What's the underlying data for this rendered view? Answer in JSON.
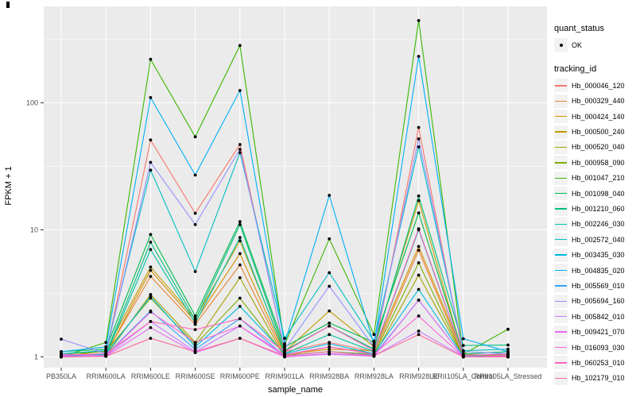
{
  "figure": {
    "background": "#FFFFFF",
    "panel_background": "#EBEBEB",
    "gridline_color": "#FFFFFF",
    "tick_mark_color": "#333333",
    "tick_label_color": "#4D4D4D",
    "axis_title_color": "#000000",
    "point_color": "#000000",
    "legend_key_background": "#F2F2F2"
  },
  "legend": {
    "quant_status_title": "quant_status",
    "quant_status_items": [
      {
        "label": "OK",
        "marker": "black-point"
      }
    ],
    "tracking_id_title": "tracking_id"
  },
  "chart_data": {
    "type": "line",
    "title": "",
    "xlabel": "sample_name",
    "ylabel": "FPKM + 1",
    "y_scale": "log10",
    "y_ticks": [
      "1",
      "10",
      "100"
    ],
    "y_tick_values": [
      1,
      10,
      100
    ],
    "y_minor_tick_values": [
      3.162,
      31.623,
      316.23
    ],
    "ylim": [
      0.93,
      575
    ],
    "grid": true,
    "legend_position": "right",
    "point_marker": "black dot on every vertex",
    "categories": [
      "PB350LA",
      "RRIM600LA",
      "RRIM600LE",
      "RRIM600SE",
      "RRIM600PE",
      "RRIM901LA",
      "RRIM928BA",
      "RRIM928LA",
      "RRIM928LE",
      "RRII105LA_Control",
      "RRII105LA_Stressed"
    ],
    "series": [
      {
        "name": "Hb_000046_120",
        "color": "#F8766D",
        "values": [
          1.02,
          1.05,
          51,
          13.5,
          47,
          1.1,
          1.3,
          1.1,
          64,
          1.02,
          1.05
        ]
      },
      {
        "name": "Hb_000329_440",
        "color": "#EA8331",
        "values": [
          1.0,
          1.06,
          4.3,
          1.8,
          5.3,
          1.02,
          1.2,
          1.06,
          6.9,
          1.0,
          1.02
        ]
      },
      {
        "name": "Hb_000424_140",
        "color": "#D89000",
        "values": [
          1.01,
          1.04,
          4.8,
          1.9,
          6.5,
          1.05,
          1.15,
          1.12,
          7.4,
          1.05,
          1.01
        ]
      },
      {
        "name": "Hb_000500_240",
        "color": "#C09B00",
        "values": [
          1.0,
          1.12,
          5.1,
          2.0,
          8.2,
          1.1,
          2.3,
          1.2,
          17.0,
          1.02,
          1.03
        ]
      },
      {
        "name": "Hb_000520_040",
        "color": "#A3A500",
        "values": [
          1.0,
          1.02,
          3.1,
          1.3,
          4.2,
          1.0,
          1.06,
          1.02,
          4.4,
          1.0,
          1.0
        ]
      },
      {
        "name": "Hb_000958_090",
        "color": "#7CAE00",
        "values": [
          1.05,
          1.1,
          2.9,
          1.25,
          2.9,
          1.03,
          1.1,
          1.05,
          5.5,
          1.0,
          1.0
        ]
      },
      {
        "name": "Hb_001047_210",
        "color": "#39B600",
        "values": [
          1.0,
          1.3,
          220,
          54,
          283,
          1.25,
          8.5,
          1.5,
          444,
          1.05,
          1.65
        ]
      },
      {
        "name": "Hb_001098_040",
        "color": "#00BB4E",
        "values": [
          1.1,
          1.15,
          9.2,
          2.1,
          11.6,
          1.2,
          1.85,
          1.3,
          13.6,
          1.05,
          1.1
        ]
      },
      {
        "name": "Hb_001210_060",
        "color": "#00BF7D",
        "values": [
          1.02,
          1.06,
          8.0,
          1.95,
          11.0,
          1.12,
          1.75,
          1.15,
          18.5,
          1.23,
          1.24
        ]
      },
      {
        "name": "Hb_002246_030",
        "color": "#00C1A3",
        "values": [
          1.0,
          1.03,
          7.0,
          1.85,
          8.7,
          1.06,
          1.5,
          1.1,
          10.0,
          1.02,
          1.06
        ]
      },
      {
        "name": "Hb_002572_040",
        "color": "#00BFC4",
        "values": [
          1.06,
          1.12,
          29.5,
          4.7,
          40.5,
          1.4,
          4.6,
          1.33,
          45.0,
          1.12,
          1.15
        ]
      },
      {
        "name": "Hb_003435_030",
        "color": "#00BAE0",
        "values": [
          1.0,
          1.05,
          3.0,
          1.2,
          2.5,
          1.06,
          1.27,
          1.06,
          3.4,
          1.01,
          1.02
        ]
      },
      {
        "name": "Hb_004835_020",
        "color": "#00B0F6",
        "values": [
          1.1,
          1.2,
          110,
          27.0,
          125,
          1.27,
          18.7,
          1.25,
          232,
          1.39,
          1.1
        ]
      },
      {
        "name": "Hb_005569_010",
        "color": "#35A2FF",
        "values": [
          1.02,
          1.03,
          2.3,
          1.15,
          2.0,
          1.02,
          1.1,
          1.03,
          2.8,
          1.0,
          1.01
        ]
      },
      {
        "name": "Hb_005694_160",
        "color": "#9590FF",
        "values": [
          1.38,
          1.06,
          34.0,
          11.0,
          43.0,
          1.15,
          3.6,
          1.2,
          52.0,
          1.1,
          1.06
        ]
      },
      {
        "name": "Hb_005842_010",
        "color": "#C77CFF",
        "values": [
          1.05,
          1.02,
          1.9,
          1.1,
          1.75,
          1.01,
          1.06,
          1.02,
          1.6,
          1.01,
          1.0
        ]
      },
      {
        "name": "Hb_009421_070",
        "color": "#E76BF3",
        "values": [
          1.01,
          1.01,
          1.7,
          1.08,
          1.4,
          1.0,
          1.05,
          1.01,
          2.8,
          1.0,
          1.0
        ]
      },
      {
        "name": "Hb_016093_030",
        "color": "#FA62DB",
        "values": [
          1.0,
          1.02,
          2.26,
          1.3,
          1.75,
          1.04,
          1.2,
          1.05,
          2.1,
          1.0,
          1.02
        ]
      },
      {
        "name": "Hb_060253_010",
        "color": "#FF62BC",
        "values": [
          1.03,
          1.06,
          1.9,
          1.64,
          2.0,
          1.1,
          1.75,
          1.12,
          10.2,
          1.03,
          1.05
        ]
      },
      {
        "name": "Hb_102179_010",
        "color": "#FF6A98",
        "values": [
          1.0,
          1.01,
          1.4,
          1.1,
          1.4,
          1.02,
          1.1,
          1.02,
          1.5,
          1.0,
          1.0
        ]
      }
    ]
  }
}
